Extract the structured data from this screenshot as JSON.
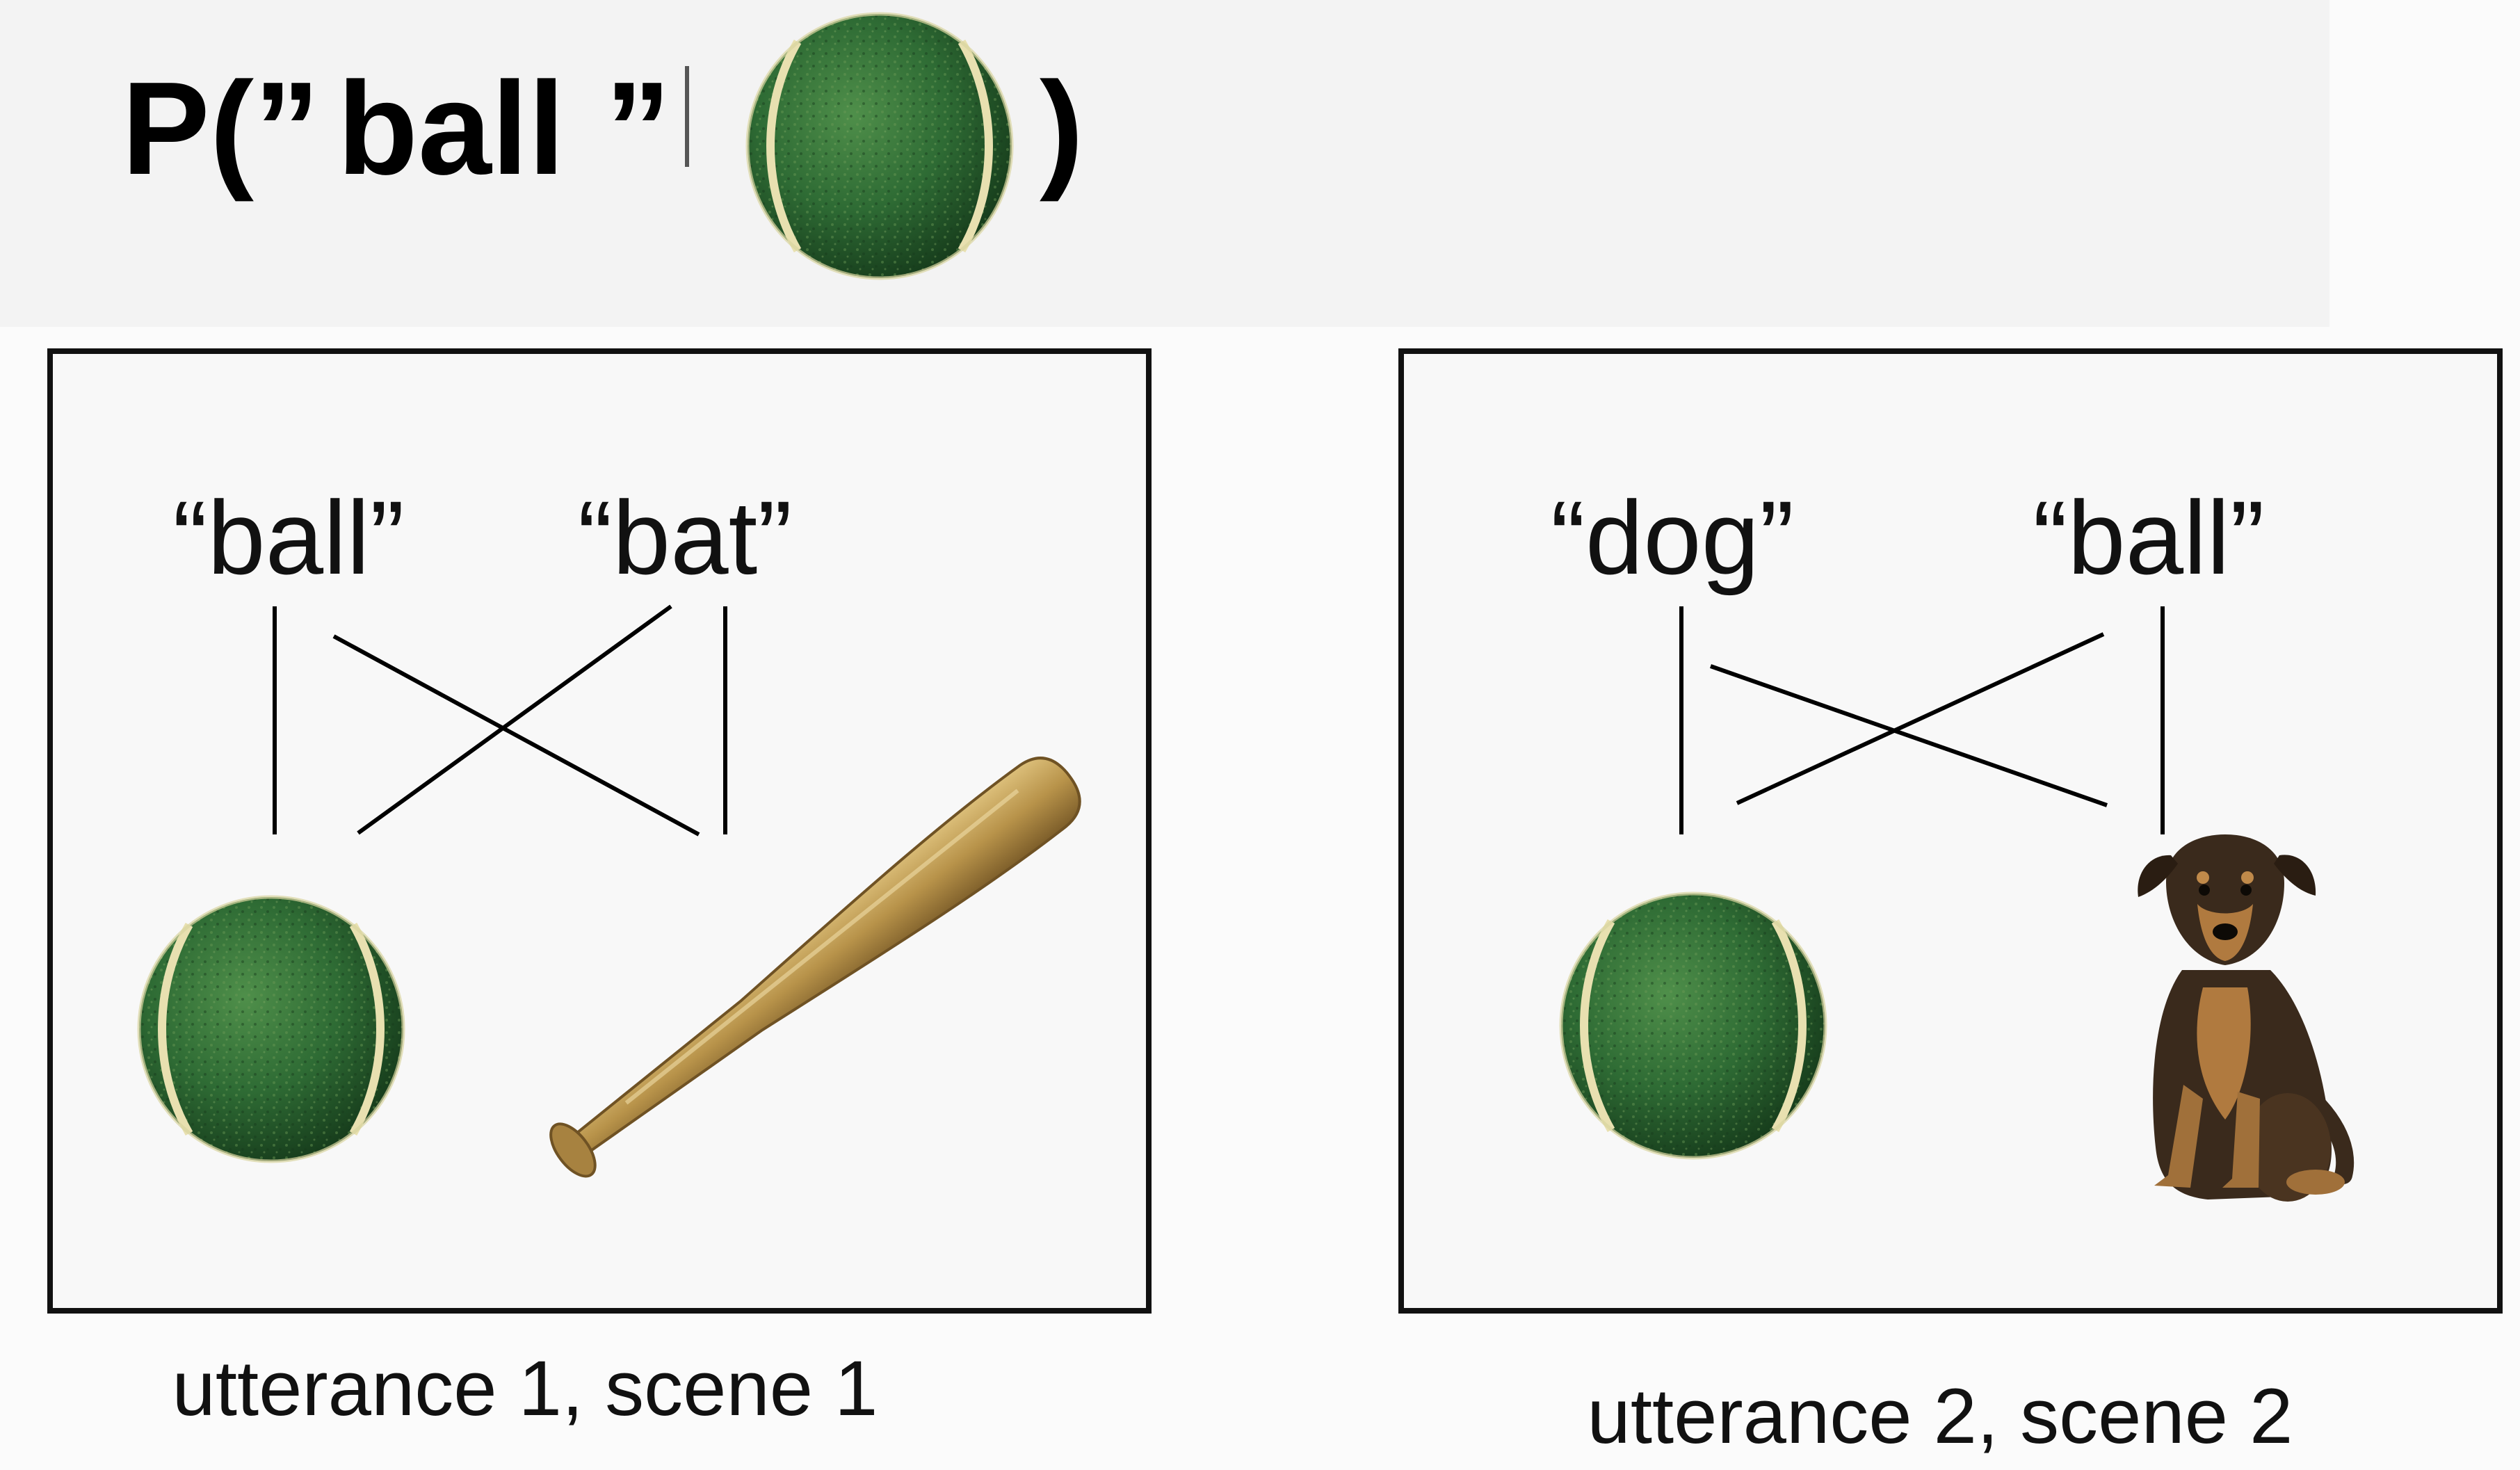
{
  "formula": {
    "prefix": "P(”",
    "word": "ball",
    "close_quote": "”",
    "suffix": ")"
  },
  "scenes": [
    {
      "caption": "utterance 1, scene 1",
      "words": [
        "“ball”",
        "“bat”"
      ],
      "objects": [
        "tennis-ball",
        "baseball-bat"
      ]
    },
    {
      "caption": "utterance 2, scene 2",
      "words": [
        "“dog”",
        "“ball”"
      ],
      "objects": [
        "tennis-ball",
        "dog"
      ]
    }
  ],
  "colors": {
    "ball_green": "#2e6b34",
    "ball_seam": "#e8e0b0",
    "bat": "#b8934a",
    "dog_dark": "#3a2a1c",
    "dog_tan": "#b07a3f"
  }
}
